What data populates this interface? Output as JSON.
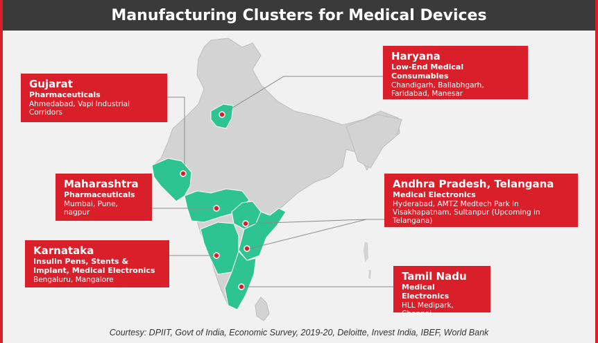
{
  "title": "Manufacturing Clusters for Medical Devices",
  "colors": {
    "accent": "#d9202a",
    "header": "#3a3a3a",
    "highlight": "#2ec491",
    "land": "#d3d3d3"
  },
  "clusters": [
    {
      "state": "Gujarat",
      "category": "Pharmaceuticals",
      "locations": [
        "Ahmedabad, Vapi Industrial Corridors"
      ]
    },
    {
      "state": "Maharashtra",
      "category": "Pharmaceuticals",
      "locations": [
        "Mumbai, Pune, nagpur"
      ]
    },
    {
      "state": "Karnataka",
      "category": "Insulin Pens, Stents & Implant, Medical Electronics",
      "locations": [
        "Bengaluru, Mangalore"
      ]
    },
    {
      "state": "Haryana",
      "category": "Low-End Medical Consumables",
      "locations": [
        "Chandigarh, Ballabhgarh,",
        "Faridabad, Manesar"
      ]
    },
    {
      "state": "Andhra Pradesh, Telangana",
      "category": "Medical Electronics",
      "locations": [
        "Hyderabad, AMTZ Medtech Park in",
        "Visakhapatnam, Sultanpur (Upcoming in Telangana)"
      ]
    },
    {
      "state": "Tamil Nadu",
      "category": "Medical Electronics",
      "locations": [
        "HLL Medipark, Chennai"
      ]
    }
  ],
  "source": "Courtesy: DPIIT, Govt of India, Economic  Survey, 2019-20, Deloitte, Invest India, IBEF, World Bank"
}
